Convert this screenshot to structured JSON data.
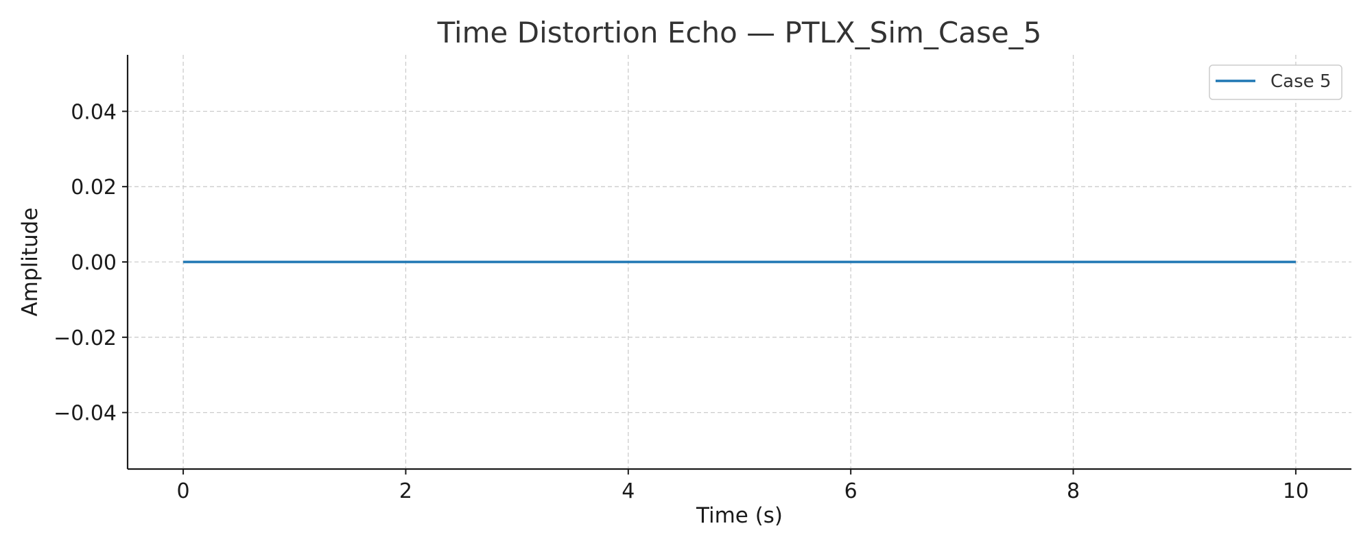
{
  "chart_data": {
    "type": "line",
    "title": "Time Distortion Echo — PTLX_Sim_Case_5",
    "xlabel": "Time (s)",
    "ylabel": "Amplitude",
    "xlim": [
      -0.5,
      10.5
    ],
    "ylim": [
      -0.055,
      0.055
    ],
    "x_ticks": [
      0,
      2,
      4,
      6,
      8,
      10
    ],
    "x_tick_labels": [
      "0",
      "2",
      "4",
      "6",
      "8",
      "10"
    ],
    "y_ticks": [
      -0.04,
      -0.02,
      0.0,
      0.02,
      0.04
    ],
    "y_tick_labels": [
      "−0.04",
      "−0.02",
      "0.00",
      "0.02",
      "0.04"
    ],
    "grid": true,
    "legend_position": "top-right",
    "series": [
      {
        "name": "Case 5",
        "color": "#1f77b4",
        "x": [
          0,
          10
        ],
        "y": [
          0.0,
          0.0
        ]
      }
    ]
  }
}
